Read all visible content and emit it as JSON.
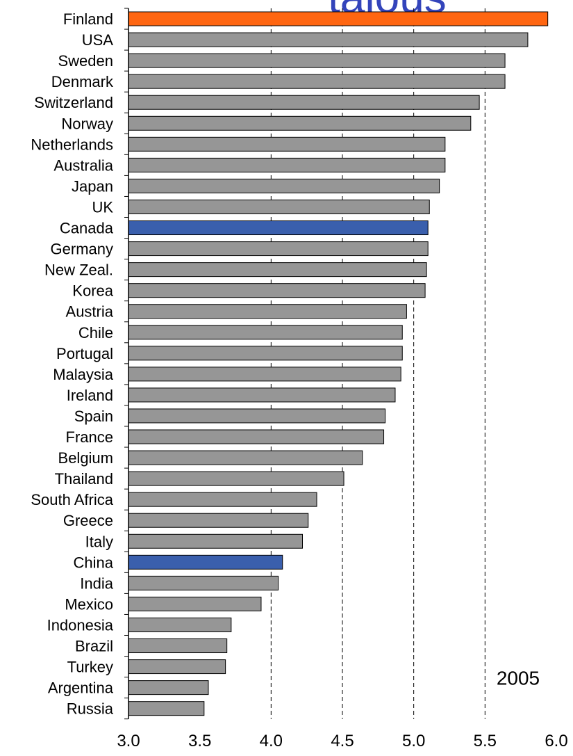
{
  "watermark": "talous",
  "chart_data": {
    "type": "bar",
    "orientation": "horizontal",
    "title": "",
    "xlabel": "",
    "ylabel": "",
    "annotation": "2005",
    "xlim": [
      3.0,
      6.0
    ],
    "xticks": [
      "3.0",
      "3.5",
      "4.0",
      "4.5",
      "5.0",
      "5.5",
      "6.0"
    ],
    "grid": "dashed vertical lines at 4.0, 4.5, 5.0, 5.5",
    "legend": "none",
    "categories": [
      "Finland",
      "USA",
      "Sweden",
      "Denmark",
      "Switzerland",
      "Norway",
      "Netherlands",
      "Australia",
      "Japan",
      "UK",
      "Canada",
      "Germany",
      "New Zeal.",
      "Korea",
      "Austria",
      "Chile",
      "Portugal",
      "Malaysia",
      "Ireland",
      "Spain",
      "France",
      "Belgium",
      "Thailand",
      "South Africa",
      "Greece",
      "Italy",
      "China",
      "India",
      "Mexico",
      "Indonesia",
      "Brazil",
      "Turkey",
      "Argentina",
      "Russia"
    ],
    "values": [
      5.94,
      5.8,
      5.64,
      5.64,
      5.46,
      5.4,
      5.22,
      5.22,
      5.18,
      5.11,
      5.1,
      5.1,
      5.09,
      5.08,
      4.95,
      4.92,
      4.92,
      4.91,
      4.87,
      4.8,
      4.79,
      4.64,
      4.51,
      4.32,
      4.26,
      4.22,
      4.08,
      4.05,
      3.93,
      3.72,
      3.69,
      3.68,
      3.56,
      3.53
    ],
    "colors": {
      "default": "#969696",
      "Finland": "#ff6611",
      "Canada": "#3a5fad",
      "China": "#3a5fad"
    }
  }
}
